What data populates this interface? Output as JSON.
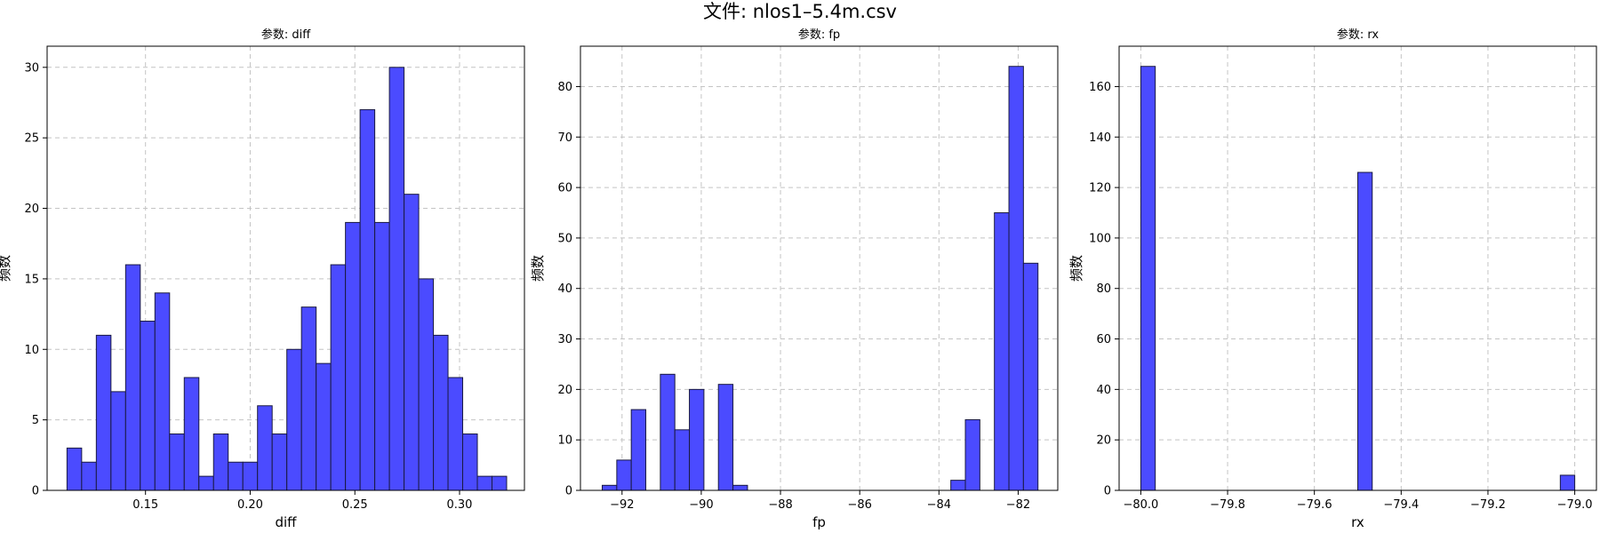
{
  "figure": {
    "title": "文件: nlos1–5.4m.csv"
  },
  "colors": {
    "bar_fill": "#4b4bff",
    "bar_edge": "#1a1a40",
    "grid": "#c4c4c4"
  },
  "chart_data": [
    {
      "type": "bar",
      "title": "参数: diff",
      "xlabel": "diff",
      "ylabel": "频数",
      "xlim": [
        0.103,
        0.331
      ],
      "ylim": [
        0,
        31.5
      ],
      "xticks": [
        0.15,
        0.2,
        0.25,
        0.3
      ],
      "xtick_labels": [
        "0.15",
        "0.20",
        "0.25",
        "0.30"
      ],
      "yticks": [
        0,
        5,
        10,
        15,
        20,
        25,
        30
      ],
      "grid": true,
      "bins": [
        {
          "x0": 0.1125,
          "x1": 0.1195,
          "count": 3
        },
        {
          "x0": 0.1195,
          "x1": 0.1265,
          "count": 2
        },
        {
          "x0": 0.1265,
          "x1": 0.1335,
          "count": 11
        },
        {
          "x0": 0.1335,
          "x1": 0.1405,
          "count": 7
        },
        {
          "x0": 0.1405,
          "x1": 0.1475,
          "count": 16
        },
        {
          "x0": 0.1475,
          "x1": 0.1545,
          "count": 12
        },
        {
          "x0": 0.1545,
          "x1": 0.1615,
          "count": 14
        },
        {
          "x0": 0.1615,
          "x1": 0.1685,
          "count": 4
        },
        {
          "x0": 0.1685,
          "x1": 0.1755,
          "count": 8
        },
        {
          "x0": 0.1755,
          "x1": 0.1825,
          "count": 1
        },
        {
          "x0": 0.1825,
          "x1": 0.1895,
          "count": 4
        },
        {
          "x0": 0.1895,
          "x1": 0.1965,
          "count": 2
        },
        {
          "x0": 0.1965,
          "x1": 0.2035,
          "count": 2
        },
        {
          "x0": 0.2035,
          "x1": 0.2105,
          "count": 6
        },
        {
          "x0": 0.2105,
          "x1": 0.2175,
          "count": 4
        },
        {
          "x0": 0.2175,
          "x1": 0.2245,
          "count": 10
        },
        {
          "x0": 0.2245,
          "x1": 0.2315,
          "count": 13
        },
        {
          "x0": 0.2315,
          "x1": 0.2385,
          "count": 9
        },
        {
          "x0": 0.2385,
          "x1": 0.2455,
          "count": 16
        },
        {
          "x0": 0.2455,
          "x1": 0.2525,
          "count": 19
        },
        {
          "x0": 0.2525,
          "x1": 0.2595,
          "count": 27
        },
        {
          "x0": 0.2595,
          "x1": 0.2665,
          "count": 19
        },
        {
          "x0": 0.2665,
          "x1": 0.2735,
          "count": 30
        },
        {
          "x0": 0.2735,
          "x1": 0.2805,
          "count": 21
        },
        {
          "x0": 0.2805,
          "x1": 0.2875,
          "count": 15
        },
        {
          "x0": 0.2875,
          "x1": 0.2945,
          "count": 11
        },
        {
          "x0": 0.2945,
          "x1": 0.3015,
          "count": 8
        },
        {
          "x0": 0.3015,
          "x1": 0.3085,
          "count": 4
        },
        {
          "x0": 0.3085,
          "x1": 0.3155,
          "count": 1
        },
        {
          "x0": 0.3155,
          "x1": 0.3225,
          "count": 1
        }
      ]
    },
    {
      "type": "bar",
      "title": "参数: fp",
      "xlabel": "fp",
      "ylabel": "频数",
      "xlim": [
        -93.05,
        -81.0
      ],
      "ylim": [
        0,
        88
      ],
      "xticks": [
        -92,
        -90,
        -88,
        -86,
        -84,
        -82
      ],
      "xtick_labels": [
        "−92",
        "−90",
        "−88",
        "−86",
        "−84",
        "−82"
      ],
      "yticks": [
        0,
        10,
        20,
        30,
        40,
        50,
        60,
        70,
        80
      ],
      "grid": true,
      "bins": [
        {
          "x0": -92.5,
          "x1": -92.133,
          "count": 1
        },
        {
          "x0": -92.133,
          "x1": -91.767,
          "count": 6
        },
        {
          "x0": -91.767,
          "x1": -91.4,
          "count": 16
        },
        {
          "x0": -91.4,
          "x1": -91.033,
          "count": 0
        },
        {
          "x0": -91.033,
          "x1": -90.667,
          "count": 23
        },
        {
          "x0": -90.667,
          "x1": -90.3,
          "count": 12
        },
        {
          "x0": -90.3,
          "x1": -89.933,
          "count": 20
        },
        {
          "x0": -89.933,
          "x1": -89.567,
          "count": 0
        },
        {
          "x0": -89.567,
          "x1": -89.2,
          "count": 21
        },
        {
          "x0": -89.2,
          "x1": -88.833,
          "count": 1
        },
        {
          "x0": -83.7,
          "x1": -83.333,
          "count": 2
        },
        {
          "x0": -83.333,
          "x1": -82.967,
          "count": 14
        },
        {
          "x0": -82.6,
          "x1": -82.233,
          "count": 55
        },
        {
          "x0": -82.233,
          "x1": -81.867,
          "count": 84
        },
        {
          "x0": -81.867,
          "x1": -81.5,
          "count": 45
        }
      ]
    },
    {
      "type": "bar",
      "title": "参数: rx",
      "xlabel": "rx",
      "ylabel": "频数",
      "xlim": [
        -80.05,
        -78.95
      ],
      "ylim": [
        0,
        176
      ],
      "xticks": [
        -80.0,
        -79.8,
        -79.6,
        -79.4,
        -79.2,
        -79.0
      ],
      "xtick_labels": [
        "−80.0",
        "−79.8",
        "−79.6",
        "−79.4",
        "−79.2",
        "−79.0"
      ],
      "yticks": [
        0,
        20,
        40,
        60,
        80,
        100,
        120,
        140,
        160
      ],
      "grid": true,
      "bins": [
        {
          "x0": -80.0,
          "x1": -79.9667,
          "count": 168
        },
        {
          "x0": -79.5,
          "x1": -79.4667,
          "count": 126
        },
        {
          "x0": -79.0333,
          "x1": -79.0,
          "count": 6
        }
      ]
    }
  ]
}
